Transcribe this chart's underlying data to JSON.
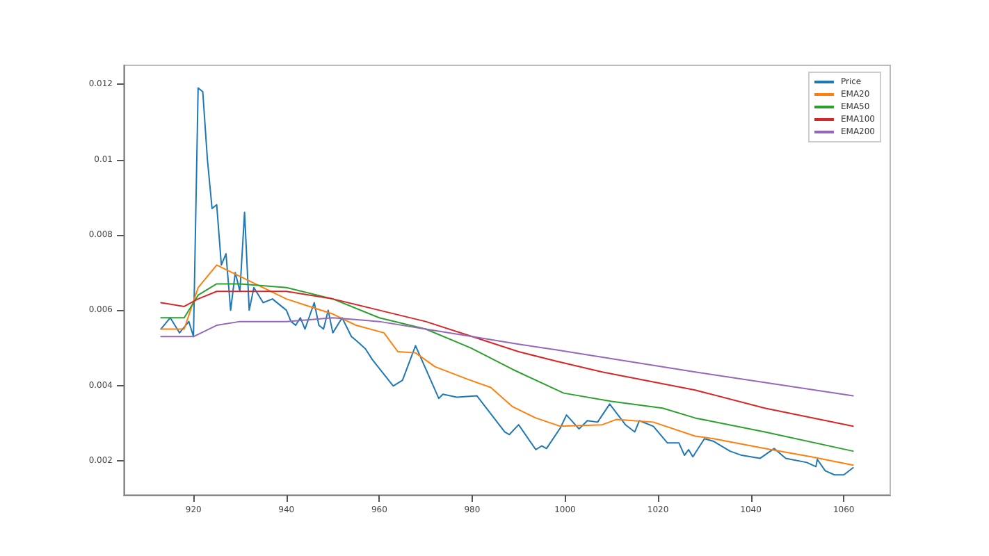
{
  "chart_data": {
    "type": "line",
    "xlim": [
      905,
      1070
    ],
    "xticks": [
      920,
      940,
      960,
      980,
      1000,
      1020,
      1040,
      1060
    ],
    "ylim": [
      0.0011,
      0.0125
    ],
    "yticks": [
      0.002,
      0.004,
      0.006,
      0.008,
      0.01,
      0.012
    ],
    "grid": false,
    "legend": "top right",
    "marker": "none",
    "line_style": "solid",
    "series": [
      {
        "name": "Price",
        "color": "#1f77b4",
        "x": [
          913,
          915,
          917,
          919,
          920,
          921,
          922,
          923,
          924,
          925,
          926,
          927,
          928,
          929,
          930,
          931,
          932,
          933,
          935,
          937,
          940,
          941,
          942,
          943,
          944,
          946,
          947,
          948,
          949,
          950,
          952,
          954,
          955,
          957,
          958.5,
          963,
          965,
          967.8,
          972.8,
          973.7,
          976.7,
          981,
          984,
          987,
          988,
          990,
          993.7,
          995,
          996,
          999,
          1000.3,
          1003,
          1004.8,
          1007,
          1009.6,
          1013,
          1015,
          1016,
          1019,
          1022,
          1024.5,
          1025.7,
          1026.6,
          1027.5,
          1030,
          1032,
          1035.5,
          1038,
          1042,
          1045,
          1047.5,
          1052,
          1054,
          1054.3,
          1056,
          1058,
          1060,
          1062
        ],
        "values": [
          0.0055,
          0.0058,
          0.0054,
          0.0057,
          0.0053,
          0.0119,
          0.0118,
          0.01,
          0.0087,
          0.0088,
          0.0072,
          0.0075,
          0.006,
          0.007,
          0.0065,
          0.0086,
          0.006,
          0.0066,
          0.0062,
          0.0063,
          0.006,
          0.0057,
          0.0056,
          0.0058,
          0.0055,
          0.0062,
          0.0056,
          0.0055,
          0.006,
          0.0054,
          0.0058,
          0.0053,
          0.0052,
          0.00498,
          0.00469,
          0.00399,
          0.00414,
          0.00506,
          0.00366,
          0.00377,
          0.00369,
          0.00373,
          0.00325,
          0.00277,
          0.0027,
          0.00296,
          0.0023,
          0.0024,
          0.00233,
          0.00288,
          0.00322,
          0.00285,
          0.00307,
          0.00303,
          0.00351,
          0.00296,
          0.00277,
          0.00307,
          0.00292,
          0.00248,
          0.00248,
          0.00215,
          0.0023,
          0.00211,
          0.00259,
          0.00252,
          0.00226,
          0.00215,
          0.00207,
          0.00233,
          0.00207,
          0.00196,
          0.00185,
          0.00204,
          0.00174,
          0.00163,
          0.00163,
          0.00182
        ]
      },
      {
        "name": "EMA20",
        "color": "#ff7f0e",
        "x": [
          913,
          918,
          921,
          925,
          930,
          935,
          940,
          945,
          950,
          955,
          961,
          964,
          967.8,
          972,
          979,
          984,
          988.7,
          993.7,
          999,
          1008,
          1011,
          1019,
          1028,
          1032,
          1043,
          1053,
          1062
        ],
        "values": [
          0.0055,
          0.0055,
          0.0066,
          0.0072,
          0.0069,
          0.0066,
          0.0063,
          0.0061,
          0.0059,
          0.0056,
          0.0054,
          0.0049,
          0.00487,
          0.0045,
          0.00417,
          0.00395,
          0.00344,
          0.00314,
          0.00292,
          0.00296,
          0.0031,
          0.00303,
          0.00266,
          0.00259,
          0.00233,
          0.00211,
          0.00189
        ]
      },
      {
        "name": "EMA50",
        "color": "#2ca02c",
        "x": [
          913,
          918,
          921,
          925,
          930,
          940,
          950,
          960,
          970,
          979.7,
          988.7,
          999.7,
          1010,
          1021,
          1028,
          1043,
          1062
        ],
        "values": [
          0.0058,
          0.0058,
          0.0064,
          0.0067,
          0.0067,
          0.0066,
          0.0063,
          0.0058,
          0.0055,
          0.005,
          0.00443,
          0.0038,
          0.00358,
          0.0034,
          0.00314,
          0.00277,
          0.00226
        ]
      },
      {
        "name": "EMA100",
        "color": "#d62728",
        "x": [
          913,
          918,
          921,
          925,
          930,
          940,
          950,
          960,
          970,
          980,
          990,
          998,
          1008,
          1028,
          1043,
          1062
        ],
        "values": [
          0.0062,
          0.0061,
          0.0063,
          0.0065,
          0.0065,
          0.0065,
          0.0063,
          0.006,
          0.0057,
          0.0053,
          0.0049,
          0.00465,
          0.00436,
          0.00388,
          0.0034,
          0.00292
        ]
      },
      {
        "name": "EMA200",
        "color": "#9467bd",
        "x": [
          913,
          918,
          920,
          925,
          930,
          940,
          950,
          960,
          970,
          980,
          990,
          998,
          1028,
          1062
        ],
        "values": [
          0.0053,
          0.0053,
          0.0053,
          0.0056,
          0.0057,
          0.0057,
          0.0058,
          0.0057,
          0.0055,
          0.0053,
          0.0051,
          0.00495,
          0.00436,
          0.00373
        ]
      }
    ]
  }
}
